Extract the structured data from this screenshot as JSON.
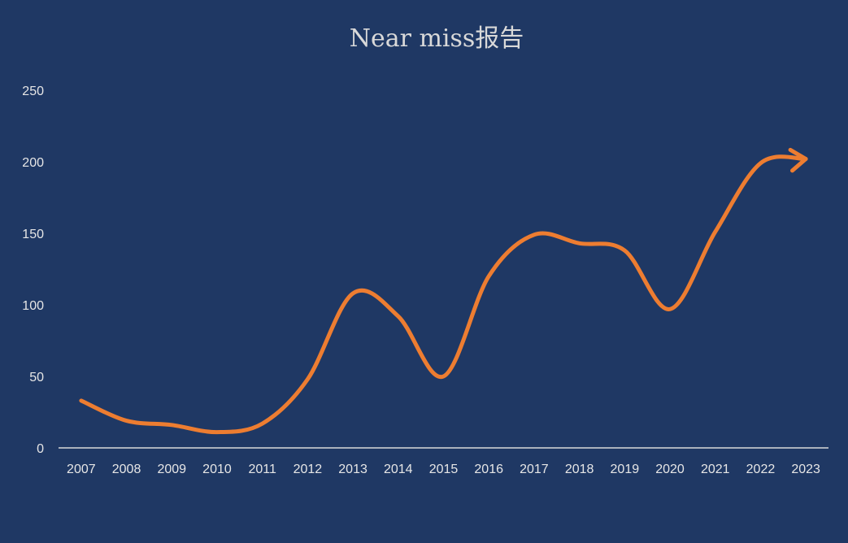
{
  "chart_data": {
    "type": "line",
    "title": "Near miss报告",
    "xlabel": "",
    "ylabel": "",
    "categories": [
      "2007",
      "2008",
      "2009",
      "2010",
      "2011",
      "2012",
      "2013",
      "2014",
      "2015",
      "2016",
      "2017",
      "2018",
      "2019",
      "2020",
      "2021",
      "2022",
      "2023"
    ],
    "series": [
      {
        "values": [
          33,
          19,
          16,
          11,
          17,
          48,
          108,
          92,
          50,
          120,
          149,
          143,
          138,
          97,
          151,
          199,
          202
        ]
      }
    ],
    "yticks": [
      0,
      50,
      100,
      150,
      200,
      250
    ],
    "ylim": [
      0,
      250
    ],
    "grid": false,
    "legend": "none",
    "smooth": true,
    "end_marker": "arrow",
    "colors": {
      "background": "#1f3864",
      "line": "#ed7d31",
      "axis": "#d9d9d9",
      "text": "#e6e6e6"
    }
  }
}
